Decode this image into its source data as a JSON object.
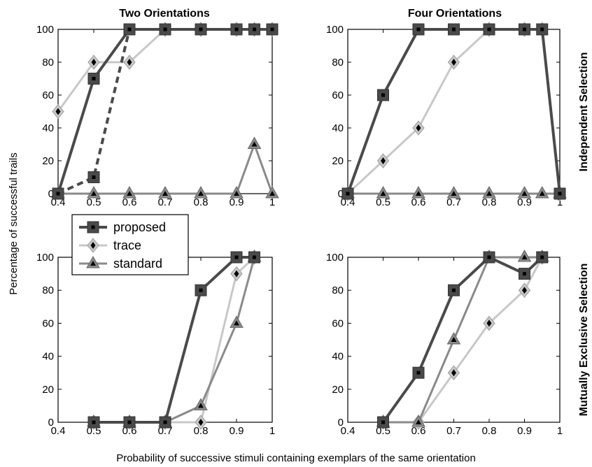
{
  "figure": {
    "ylabel": "Percentage of successful trails",
    "xlabel": "Probability of successive stimuli containing exemplars of the same orientation",
    "col_titles": [
      "Two Orientations",
      "Four Orientations"
    ],
    "row_titles": [
      "Independent Selection",
      "Mutually Exclusive Selection"
    ],
    "legend": [
      {
        "key": "proposed",
        "label": "proposed",
        "marker": "square",
        "color": "#4a4a4a"
      },
      {
        "key": "trace",
        "label": "trace",
        "marker": "diamond",
        "color": "#c8c8c8"
      },
      {
        "key": "standard",
        "label": "standard",
        "marker": "triangle",
        "color": "#8a8a8a"
      }
    ]
  },
  "chart_data": [
    {
      "type": "line",
      "title": "Two Orientations",
      "row_label": "Independent Selection",
      "xlim": [
        0.4,
        1
      ],
      "ylim": [
        0,
        100
      ],
      "xticks": [
        "0.4",
        "0.5",
        "0.6",
        "0.7",
        "0.8",
        "0.9",
        "1"
      ],
      "yticks": [
        "0",
        "20",
        "40",
        "60",
        "80",
        "100"
      ],
      "series": [
        {
          "name": "trace",
          "x": [
            0.4,
            0.5,
            0.6,
            0.7,
            0.8,
            0.9,
            0.95,
            1
          ],
          "y": [
            50,
            80,
            80,
            100,
            100,
            100,
            100,
            100
          ]
        },
        {
          "name": "standard",
          "x": [
            0.4,
            0.5,
            0.6,
            0.7,
            0.8,
            0.9,
            0.95,
            1
          ],
          "y": [
            0,
            0,
            0,
            0,
            0,
            0,
            30,
            0
          ]
        },
        {
          "name": "proposed",
          "x": [
            0.4,
            0.5,
            0.6,
            0.7,
            0.8,
            0.9,
            0.95,
            1
          ],
          "y": [
            0,
            70,
            100,
            100,
            100,
            100,
            100,
            100
          ]
        },
        {
          "name": "proposed",
          "style": "dashed",
          "x": [
            0.4,
            0.5,
            0.6
          ],
          "y": [
            0,
            10,
            100
          ]
        }
      ]
    },
    {
      "type": "line",
      "title": "Four Orientations",
      "row_label": "Independent Selection",
      "xlim": [
        0.4,
        1
      ],
      "ylim": [
        0,
        100
      ],
      "xticks": [
        "0.4",
        "0.5",
        "0.6",
        "0.7",
        "0.8",
        "0.9",
        "1"
      ],
      "yticks": [
        "0",
        "20",
        "40",
        "60",
        "80",
        "100"
      ],
      "series": [
        {
          "name": "trace",
          "x": [
            0.4,
            0.5,
            0.6,
            0.7,
            0.8,
            0.9,
            0.95,
            1
          ],
          "y": [
            0,
            20,
            40,
            80,
            100,
            100,
            100,
            0
          ]
        },
        {
          "name": "standard",
          "x": [
            0.4,
            0.5,
            0.6,
            0.7,
            0.8,
            0.9,
            0.95,
            1
          ],
          "y": [
            0,
            0,
            0,
            0,
            0,
            0,
            0,
            0
          ]
        },
        {
          "name": "proposed",
          "x": [
            0.4,
            0.5,
            0.6,
            0.7,
            0.8,
            0.9,
            0.95,
            1
          ],
          "y": [
            0,
            60,
            100,
            100,
            100,
            100,
            100,
            0
          ]
        }
      ]
    },
    {
      "type": "line",
      "title": "Two Orientations",
      "row_label": "Mutually Exclusive Selection",
      "xlim": [
        0.4,
        1
      ],
      "ylim": [
        0,
        100
      ],
      "xticks": [
        "0.4",
        "0.5",
        "0.6",
        "0.7",
        "0.8",
        "0.9",
        "1"
      ],
      "yticks": [
        "0",
        "20",
        "40",
        "60",
        "80",
        "100"
      ],
      "series": [
        {
          "name": "trace",
          "x": [
            0.5,
            0.6,
            0.7,
            0.8,
            0.9,
            0.95
          ],
          "y": [
            0,
            0,
            0,
            0,
            90,
            100
          ]
        },
        {
          "name": "standard",
          "x": [
            0.5,
            0.6,
            0.7,
            0.8,
            0.9,
            0.95
          ],
          "y": [
            0,
            0,
            0,
            10,
            60,
            100
          ]
        },
        {
          "name": "proposed",
          "x": [
            0.5,
            0.6,
            0.7,
            0.8,
            0.9,
            0.95
          ],
          "y": [
            0,
            0,
            0,
            80,
            100,
            100
          ]
        }
      ]
    },
    {
      "type": "line",
      "title": "Four Orientations",
      "row_label": "Mutually Exclusive Selection",
      "xlim": [
        0.4,
        1
      ],
      "ylim": [
        0,
        100
      ],
      "xticks": [
        "0.4",
        "0.5",
        "0.6",
        "0.7",
        "0.8",
        "0.9",
        "1"
      ],
      "yticks": [
        "0",
        "20",
        "40",
        "60",
        "80",
        "100"
      ],
      "series": [
        {
          "name": "trace",
          "x": [
            0.5,
            0.6,
            0.7,
            0.8,
            0.9,
            0.95
          ],
          "y": [
            0,
            0,
            30,
            60,
            80,
            100
          ]
        },
        {
          "name": "standard",
          "x": [
            0.5,
            0.6,
            0.7,
            0.8,
            0.9,
            0.95
          ],
          "y": [
            0,
            0,
            50,
            100,
            100,
            100
          ]
        },
        {
          "name": "proposed",
          "x": [
            0.5,
            0.6,
            0.7,
            0.8,
            0.9,
            0.95
          ],
          "y": [
            0,
            30,
            80,
            100,
            90,
            100
          ]
        }
      ]
    }
  ]
}
